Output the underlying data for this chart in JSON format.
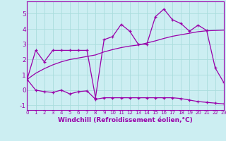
{
  "xlabel": "Windchill (Refroidissement éolien,°C)",
  "x": [
    0,
    1,
    2,
    3,
    4,
    5,
    6,
    7,
    8,
    9,
    10,
    11,
    12,
    13,
    14,
    15,
    16,
    17,
    18,
    19,
    20,
    21,
    22,
    23
  ],
  "line1": [
    0.7,
    2.6,
    1.85,
    2.6,
    2.6,
    2.6,
    2.6,
    2.6,
    -0.5,
    3.3,
    3.5,
    4.3,
    3.85,
    3.0,
    3.0,
    4.8,
    5.3,
    4.6,
    4.35,
    3.85,
    4.25,
    3.9,
    1.45,
    0.5
  ],
  "line2": [
    0.7,
    0.0,
    -0.1,
    -0.15,
    0.0,
    -0.25,
    -0.1,
    -0.05,
    -0.6,
    -0.5,
    -0.5,
    -0.5,
    -0.5,
    -0.5,
    -0.5,
    -0.5,
    -0.5,
    -0.5,
    -0.55,
    -0.65,
    -0.75,
    -0.8,
    -0.85,
    -0.9
  ],
  "line3": [
    0.7,
    1.1,
    1.4,
    1.65,
    1.85,
    2.0,
    2.1,
    2.2,
    2.3,
    2.5,
    2.65,
    2.78,
    2.88,
    2.95,
    3.08,
    3.22,
    3.38,
    3.52,
    3.62,
    3.72,
    3.82,
    3.88,
    3.9,
    3.92
  ],
  "line_color": "#9900aa",
  "bg_color": "#cceef2",
  "grid_color": "#aadddd",
  "ylim": [
    -1.3,
    5.8
  ],
  "xlim": [
    0,
    23
  ],
  "yticks": [
    -1,
    0,
    1,
    2,
    3,
    4,
    5
  ],
  "xticks": [
    0,
    1,
    2,
    3,
    4,
    5,
    6,
    7,
    8,
    9,
    10,
    11,
    12,
    13,
    14,
    15,
    16,
    17,
    18,
    19,
    20,
    21,
    22,
    23
  ],
  "marker": "+",
  "markersize": 3.5,
  "linewidth": 0.9
}
